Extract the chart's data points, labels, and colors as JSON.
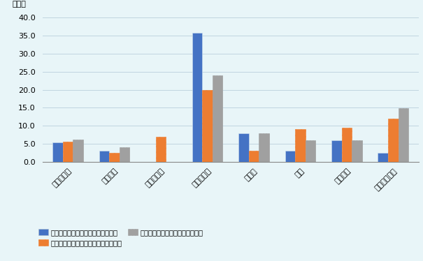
{
  "categories": [
    "中南米全体",
    "メキシコ",
    "ベネズエラ",
    "コロンビア",
    "ペルー",
    "チリ",
    "ブラジル",
    "アルゼンチン"
  ],
  "series": {
    "ippan": [
      5.4,
      3.0,
      0.0,
      35.8,
      8.0,
      3.0,
      6.0,
      2.5
    ],
    "senmon": [
      5.5,
      2.5,
      7.0,
      20.0,
      3.0,
      9.0,
      9.5,
      12.0
    ],
    "chuukan": [
      6.2,
      4.0,
      0.0,
      24.0,
      8.0,
      6.0,
      6.0,
      14.8
    ]
  },
  "colors": {
    "ippan": "#4472C4",
    "senmon": "#ED7D31",
    "chuukan": "#A0A0A0"
  },
  "legend_labels": [
    "従業員の質の高さ（一般ワーカー）",
    "従業員の質の高さ（専門職・技術職）",
    "従業員の質の高さ（中間管理職）"
  ],
  "ylabel": "（％）",
  "ylim": [
    0,
    42
  ],
  "yticks": [
    0.0,
    5.0,
    10.0,
    15.0,
    20.0,
    25.0,
    30.0,
    35.0,
    40.0
  ],
  "background_color": "#E8F5F8",
  "bar_width": 0.22
}
